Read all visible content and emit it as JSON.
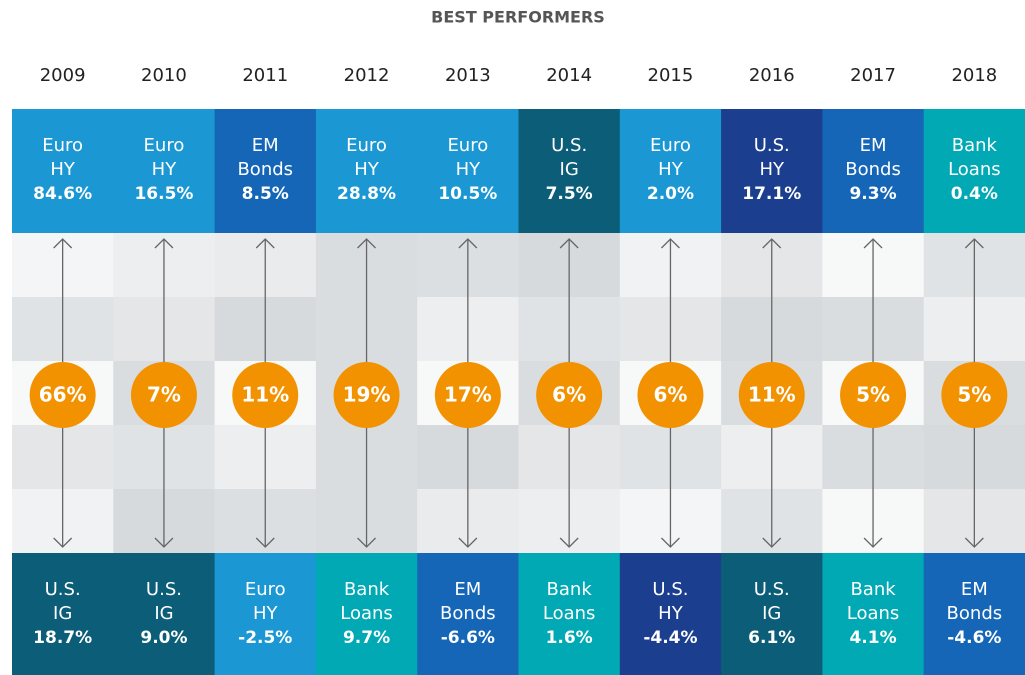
{
  "title": "BEST PERFORMERS",
  "years": [
    "2009",
    "2010",
    "2011",
    "2012",
    "2013",
    "2014",
    "2015",
    "2016",
    "2017",
    "2018"
  ],
  "best": [
    {
      "lines": [
        "Euro",
        "HY"
      ],
      "value": "84.6%",
      "color": "#1b98d3"
    },
    {
      "lines": [
        "Euro",
        "HY"
      ],
      "value": "16.5%",
      "color": "#1b98d3"
    },
    {
      "lines": [
        "EM",
        "Bonds"
      ],
      "value": "8.5%",
      "color": "#1666b8"
    },
    {
      "lines": [
        "Euro",
        "HY"
      ],
      "value": "28.8%",
      "color": "#1b98d3"
    },
    {
      "lines": [
        "Euro",
        "HY"
      ],
      "value": "10.5%",
      "color": "#1b98d3"
    },
    {
      "lines": [
        "U.S.",
        "IG"
      ],
      "value": "7.5%",
      "color": "#0b5d78"
    },
    {
      "lines": [
        "Euro",
        "HY"
      ],
      "value": "2.0%",
      "color": "#1b98d3"
    },
    {
      "lines": [
        "U.S.",
        "HY"
      ],
      "value": "17.1%",
      "color": "#1b3f8e"
    },
    {
      "lines": [
        "EM",
        "Bonds"
      ],
      "value": "9.3%",
      "color": "#1666b8"
    },
    {
      "lines": [
        "Bank",
        "Loans"
      ],
      "value": "0.4%",
      "color": "#00a9b3"
    }
  ],
  "spread": [
    "66%",
    "7%",
    "11%",
    "19%",
    "17%",
    "6%",
    "6%",
    "11%",
    "5%",
    "5%"
  ],
  "spread_color": "#f39200",
  "worst": [
    {
      "lines": [
        "U.S.",
        "IG"
      ],
      "value": "18.7%",
      "color": "#0b5d78"
    },
    {
      "lines": [
        "U.S.",
        "IG"
      ],
      "value": "9.0%",
      "color": "#0b5d78"
    },
    {
      "lines": [
        "Euro",
        "HY"
      ],
      "value": "-2.5%",
      "color": "#1b98d3"
    },
    {
      "lines": [
        "Bank",
        "Loans"
      ],
      "value": "9.7%",
      "color": "#00a9b3"
    },
    {
      "lines": [
        "EM",
        "Bonds"
      ],
      "value": "-6.6%",
      "color": "#1666b8"
    },
    {
      "lines": [
        "Bank",
        "Loans"
      ],
      "value": "1.6%",
      "color": "#00a9b3"
    },
    {
      "lines": [
        "U.S.",
        "HY"
      ],
      "value": "-4.4%",
      "color": "#1b3f8e"
    },
    {
      "lines": [
        "U.S.",
        "IG"
      ],
      "value": "6.1%",
      "color": "#0b5d78"
    },
    {
      "lines": [
        "Bank",
        "Loans"
      ],
      "value": "4.1%",
      "color": "#00a9b3"
    },
    {
      "lines": [
        "EM",
        "Bonds"
      ],
      "value": "-4.6%",
      "color": "#1666b8"
    }
  ]
}
